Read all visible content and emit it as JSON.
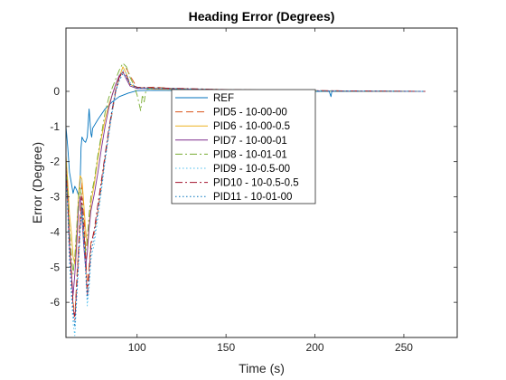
{
  "chart_data": {
    "type": "line",
    "title": "Heading Error (Degrees)",
    "xlabel": "Time (s)",
    "ylabel": "Error (Degree)",
    "xlim": [
      60,
      280
    ],
    "ylim": [
      -7,
      1.8
    ],
    "xticks": [
      100,
      150,
      200,
      250
    ],
    "yticks": [
      0,
      -1,
      -2,
      -3,
      -4,
      -5,
      -6
    ],
    "grid": false,
    "legend_position": "center",
    "series": [
      {
        "name": "REF",
        "color": "#0072BD",
        "dash": "solid",
        "points": [
          [
            60,
            -1.0
          ],
          [
            61,
            -1.6
          ],
          [
            62,
            -2.3
          ],
          [
            63,
            -2.6
          ],
          [
            64,
            -2.9
          ],
          [
            65,
            -2.7
          ],
          [
            66,
            -2.8
          ],
          [
            67,
            -2.95
          ],
          [
            68,
            -2.6
          ],
          [
            68.5,
            -1.6
          ],
          [
            69,
            -1.3
          ],
          [
            70,
            -1.4
          ],
          [
            71,
            -1.45
          ],
          [
            72,
            -1.3
          ],
          [
            73,
            -0.5
          ],
          [
            74,
            -1.2
          ],
          [
            74.5,
            -1.3
          ],
          [
            75,
            -1.05
          ],
          [
            78,
            -0.8
          ],
          [
            82,
            -0.5
          ],
          [
            86,
            -0.3
          ],
          [
            90,
            -0.15
          ],
          [
            95,
            -0.05
          ],
          [
            100,
            0.02
          ],
          [
            110,
            0.03
          ],
          [
            130,
            0.02
          ],
          [
            150,
            0.01
          ],
          [
            180,
            0.0
          ],
          [
            208,
            0.0
          ],
          [
            209,
            -0.15
          ],
          [
            209.5,
            0.0
          ],
          [
            240,
            0.0
          ],
          [
            262,
            0.0
          ]
        ]
      },
      {
        "name": "PID5 - 10-00-00",
        "color": "#D95319",
        "dash": "8,4",
        "points": [
          [
            60,
            -2.0
          ],
          [
            61,
            -3.0
          ],
          [
            62,
            -4.2
          ],
          [
            63,
            -5.0
          ],
          [
            64,
            -6.0
          ],
          [
            65,
            -6.4
          ],
          [
            66,
            -5.4
          ],
          [
            67,
            -4.5
          ],
          [
            68,
            -3.5
          ],
          [
            69,
            -2.6
          ],
          [
            70,
            -3.3
          ],
          [
            71,
            -4.5
          ],
          [
            72,
            -5.6
          ],
          [
            73,
            -5.0
          ],
          [
            74,
            -4.3
          ],
          [
            76,
            -4.0
          ],
          [
            78,
            -3.4
          ],
          [
            80,
            -2.6
          ],
          [
            82,
            -1.9
          ],
          [
            84,
            -1.2
          ],
          [
            86,
            -0.6
          ],
          [
            88,
            0.0
          ],
          [
            90,
            0.4
          ],
          [
            92,
            0.55
          ],
          [
            94,
            0.65
          ],
          [
            96,
            0.45
          ],
          [
            100,
            0.1
          ],
          [
            110,
            0.12
          ],
          [
            120,
            0.08
          ],
          [
            150,
            0.05
          ],
          [
            200,
            0.02
          ],
          [
            262,
            0.0
          ]
        ]
      },
      {
        "name": "PID6 - 10-00-0.5",
        "color": "#EDB120",
        "dash": "solid",
        "points": [
          [
            60,
            -1.8
          ],
          [
            61,
            -2.6
          ],
          [
            62,
            -3.5
          ],
          [
            63,
            -4.0
          ],
          [
            64,
            -4.7
          ],
          [
            65,
            -4.9
          ],
          [
            66,
            -4.1
          ],
          [
            67,
            -3.0
          ],
          [
            68,
            -2.4
          ],
          [
            69,
            -2.5
          ],
          [
            70,
            -3.2
          ],
          [
            71,
            -3.9
          ],
          [
            72,
            -4.4
          ],
          [
            73,
            -3.8
          ],
          [
            74,
            -3.2
          ],
          [
            76,
            -2.6
          ],
          [
            78,
            -1.9
          ],
          [
            80,
            -1.3
          ],
          [
            82,
            -0.8
          ],
          [
            84,
            -0.4
          ],
          [
            86,
            -0.1
          ],
          [
            88,
            0.2
          ],
          [
            90,
            0.4
          ],
          [
            92,
            0.7
          ],
          [
            94,
            0.5
          ],
          [
            96,
            0.2
          ],
          [
            100,
            0.1
          ],
          [
            110,
            0.06
          ],
          [
            150,
            0.03
          ],
          [
            200,
            0.01
          ],
          [
            262,
            0.0
          ]
        ]
      },
      {
        "name": "PID7 - 10-00-01",
        "color": "#7E2F8E",
        "dash": "solid",
        "points": [
          [
            60,
            -2.2
          ],
          [
            61,
            -3.2
          ],
          [
            62,
            -4.4
          ],
          [
            63,
            -5.2
          ],
          [
            64,
            -5.8
          ],
          [
            65,
            -5.2
          ],
          [
            66,
            -4.4
          ],
          [
            67,
            -3.4
          ],
          [
            68,
            -3.0
          ],
          [
            69,
            -3.6
          ],
          [
            70,
            -4.4
          ],
          [
            71,
            -5.0
          ],
          [
            72,
            -4.6
          ],
          [
            73,
            -3.9
          ],
          [
            74,
            -3.4
          ],
          [
            76,
            -2.9
          ],
          [
            78,
            -2.3
          ],
          [
            80,
            -1.6
          ],
          [
            82,
            -1.0
          ],
          [
            84,
            -0.5
          ],
          [
            86,
            -0.1
          ],
          [
            88,
            0.2
          ],
          [
            90,
            0.45
          ],
          [
            92,
            0.55
          ],
          [
            94,
            0.35
          ],
          [
            96,
            0.15
          ],
          [
            100,
            0.08
          ],
          [
            110,
            0.08
          ],
          [
            150,
            0.04
          ],
          [
            200,
            0.01
          ],
          [
            262,
            0.0
          ]
        ]
      },
      {
        "name": "PID8 - 10-01-01",
        "color": "#77AC30",
        "dash": "8,3,2,3",
        "points": [
          [
            60,
            -2.0
          ],
          [
            61,
            -2.9
          ],
          [
            62,
            -3.9
          ],
          [
            63,
            -4.6
          ],
          [
            64,
            -5.2
          ],
          [
            65,
            -4.7
          ],
          [
            66,
            -3.9
          ],
          [
            67,
            -3.1
          ],
          [
            68,
            -2.7
          ],
          [
            69,
            -3.2
          ],
          [
            70,
            -4.0
          ],
          [
            71,
            -4.6
          ],
          [
            72,
            -4.2
          ],
          [
            73,
            -3.5
          ],
          [
            74,
            -3.0
          ],
          [
            76,
            -2.5
          ],
          [
            78,
            -1.8
          ],
          [
            80,
            -1.2
          ],
          [
            82,
            -0.6
          ],
          [
            84,
            -0.2
          ],
          [
            86,
            0.1
          ],
          [
            88,
            0.35
          ],
          [
            90,
            0.6
          ],
          [
            92,
            0.8
          ],
          [
            94,
            0.7
          ],
          [
            96,
            0.4
          ],
          [
            98,
            0.2
          ],
          [
            100,
            -0.1
          ],
          [
            102,
            -0.55
          ],
          [
            103,
            -0.1
          ],
          [
            104,
            -0.3
          ],
          [
            105,
            0.05
          ],
          [
            110,
            0.1
          ],
          [
            150,
            0.03
          ],
          [
            200,
            0.01
          ],
          [
            262,
            0.0
          ]
        ]
      },
      {
        "name": "PID9 - 10-0.5-00",
        "color": "#4DBEEE",
        "dash": "1.5,2.5",
        "points": [
          [
            60,
            -2.2
          ],
          [
            61,
            -3.4
          ],
          [
            62,
            -4.8
          ],
          [
            63,
            -5.8
          ],
          [
            64,
            -6.6
          ],
          [
            65,
            -6.95
          ],
          [
            66,
            -6.0
          ],
          [
            67,
            -5.0
          ],
          [
            68,
            -4.0
          ],
          [
            69,
            -3.4
          ],
          [
            70,
            -4.2
          ],
          [
            71,
            -5.2
          ],
          [
            72,
            -6.1
          ],
          [
            73,
            -5.6
          ],
          [
            74,
            -4.8
          ],
          [
            76,
            -4.3
          ],
          [
            78,
            -3.6
          ],
          [
            80,
            -2.8
          ],
          [
            82,
            -2.0
          ],
          [
            84,
            -1.3
          ],
          [
            86,
            -0.6
          ],
          [
            88,
            0.0
          ],
          [
            90,
            0.35
          ],
          [
            92,
            0.6
          ],
          [
            94,
            0.5
          ],
          [
            96,
            0.25
          ],
          [
            100,
            0.1
          ],
          [
            110,
            0.1
          ],
          [
            150,
            0.05
          ],
          [
            200,
            0.02
          ],
          [
            262,
            0.0
          ]
        ]
      },
      {
        "name": "PID10 - 10-0.5-0.5",
        "color": "#A2142F",
        "dash": "8,3,2,3",
        "points": [
          [
            60,
            -2.1
          ],
          [
            61,
            -3.1
          ],
          [
            62,
            -4.3
          ],
          [
            63,
            -5.2
          ],
          [
            64,
            -6.1
          ],
          [
            65,
            -6.5
          ],
          [
            66,
            -5.6
          ],
          [
            67,
            -4.7
          ],
          [
            68,
            -3.8
          ],
          [
            69,
            -3.0
          ],
          [
            70,
            -3.8
          ],
          [
            71,
            -4.9
          ],
          [
            72,
            -5.8
          ],
          [
            73,
            -5.2
          ],
          [
            74,
            -4.4
          ],
          [
            76,
            -3.9
          ],
          [
            78,
            -3.2
          ],
          [
            80,
            -2.5
          ],
          [
            82,
            -1.8
          ],
          [
            84,
            -1.1
          ],
          [
            86,
            -0.5
          ],
          [
            88,
            0.05
          ],
          [
            90,
            0.4
          ],
          [
            92,
            0.55
          ],
          [
            94,
            0.45
          ],
          [
            96,
            0.2
          ],
          [
            100,
            0.12
          ],
          [
            110,
            0.1
          ],
          [
            150,
            0.05
          ],
          [
            200,
            0.02
          ],
          [
            262,
            0.0
          ]
        ]
      },
      {
        "name": "PID11 - 10-01-00",
        "color": "#0072BD",
        "dash": "1.5,2.5",
        "points": [
          [
            60,
            -2.3
          ],
          [
            61,
            -3.4
          ],
          [
            62,
            -4.7
          ],
          [
            63,
            -5.6
          ],
          [
            64,
            -6.3
          ],
          [
            65,
            -6.7
          ],
          [
            66,
            -5.8
          ],
          [
            67,
            -4.9
          ],
          [
            68,
            -3.9
          ],
          [
            69,
            -3.3
          ],
          [
            70,
            -4.1
          ],
          [
            71,
            -5.0
          ],
          [
            72,
            -5.9
          ],
          [
            73,
            -5.4
          ],
          [
            74,
            -4.6
          ],
          [
            76,
            -4.1
          ],
          [
            78,
            -3.4
          ],
          [
            80,
            -2.7
          ],
          [
            82,
            -1.9
          ],
          [
            84,
            -1.2
          ],
          [
            86,
            -0.5
          ],
          [
            88,
            0.0
          ],
          [
            90,
            0.3
          ],
          [
            92,
            0.5
          ],
          [
            94,
            0.4
          ],
          [
            96,
            0.2
          ],
          [
            100,
            0.1
          ],
          [
            110,
            0.08
          ],
          [
            150,
            0.04
          ],
          [
            200,
            0.01
          ],
          [
            262,
            0.0
          ]
        ]
      }
    ]
  }
}
